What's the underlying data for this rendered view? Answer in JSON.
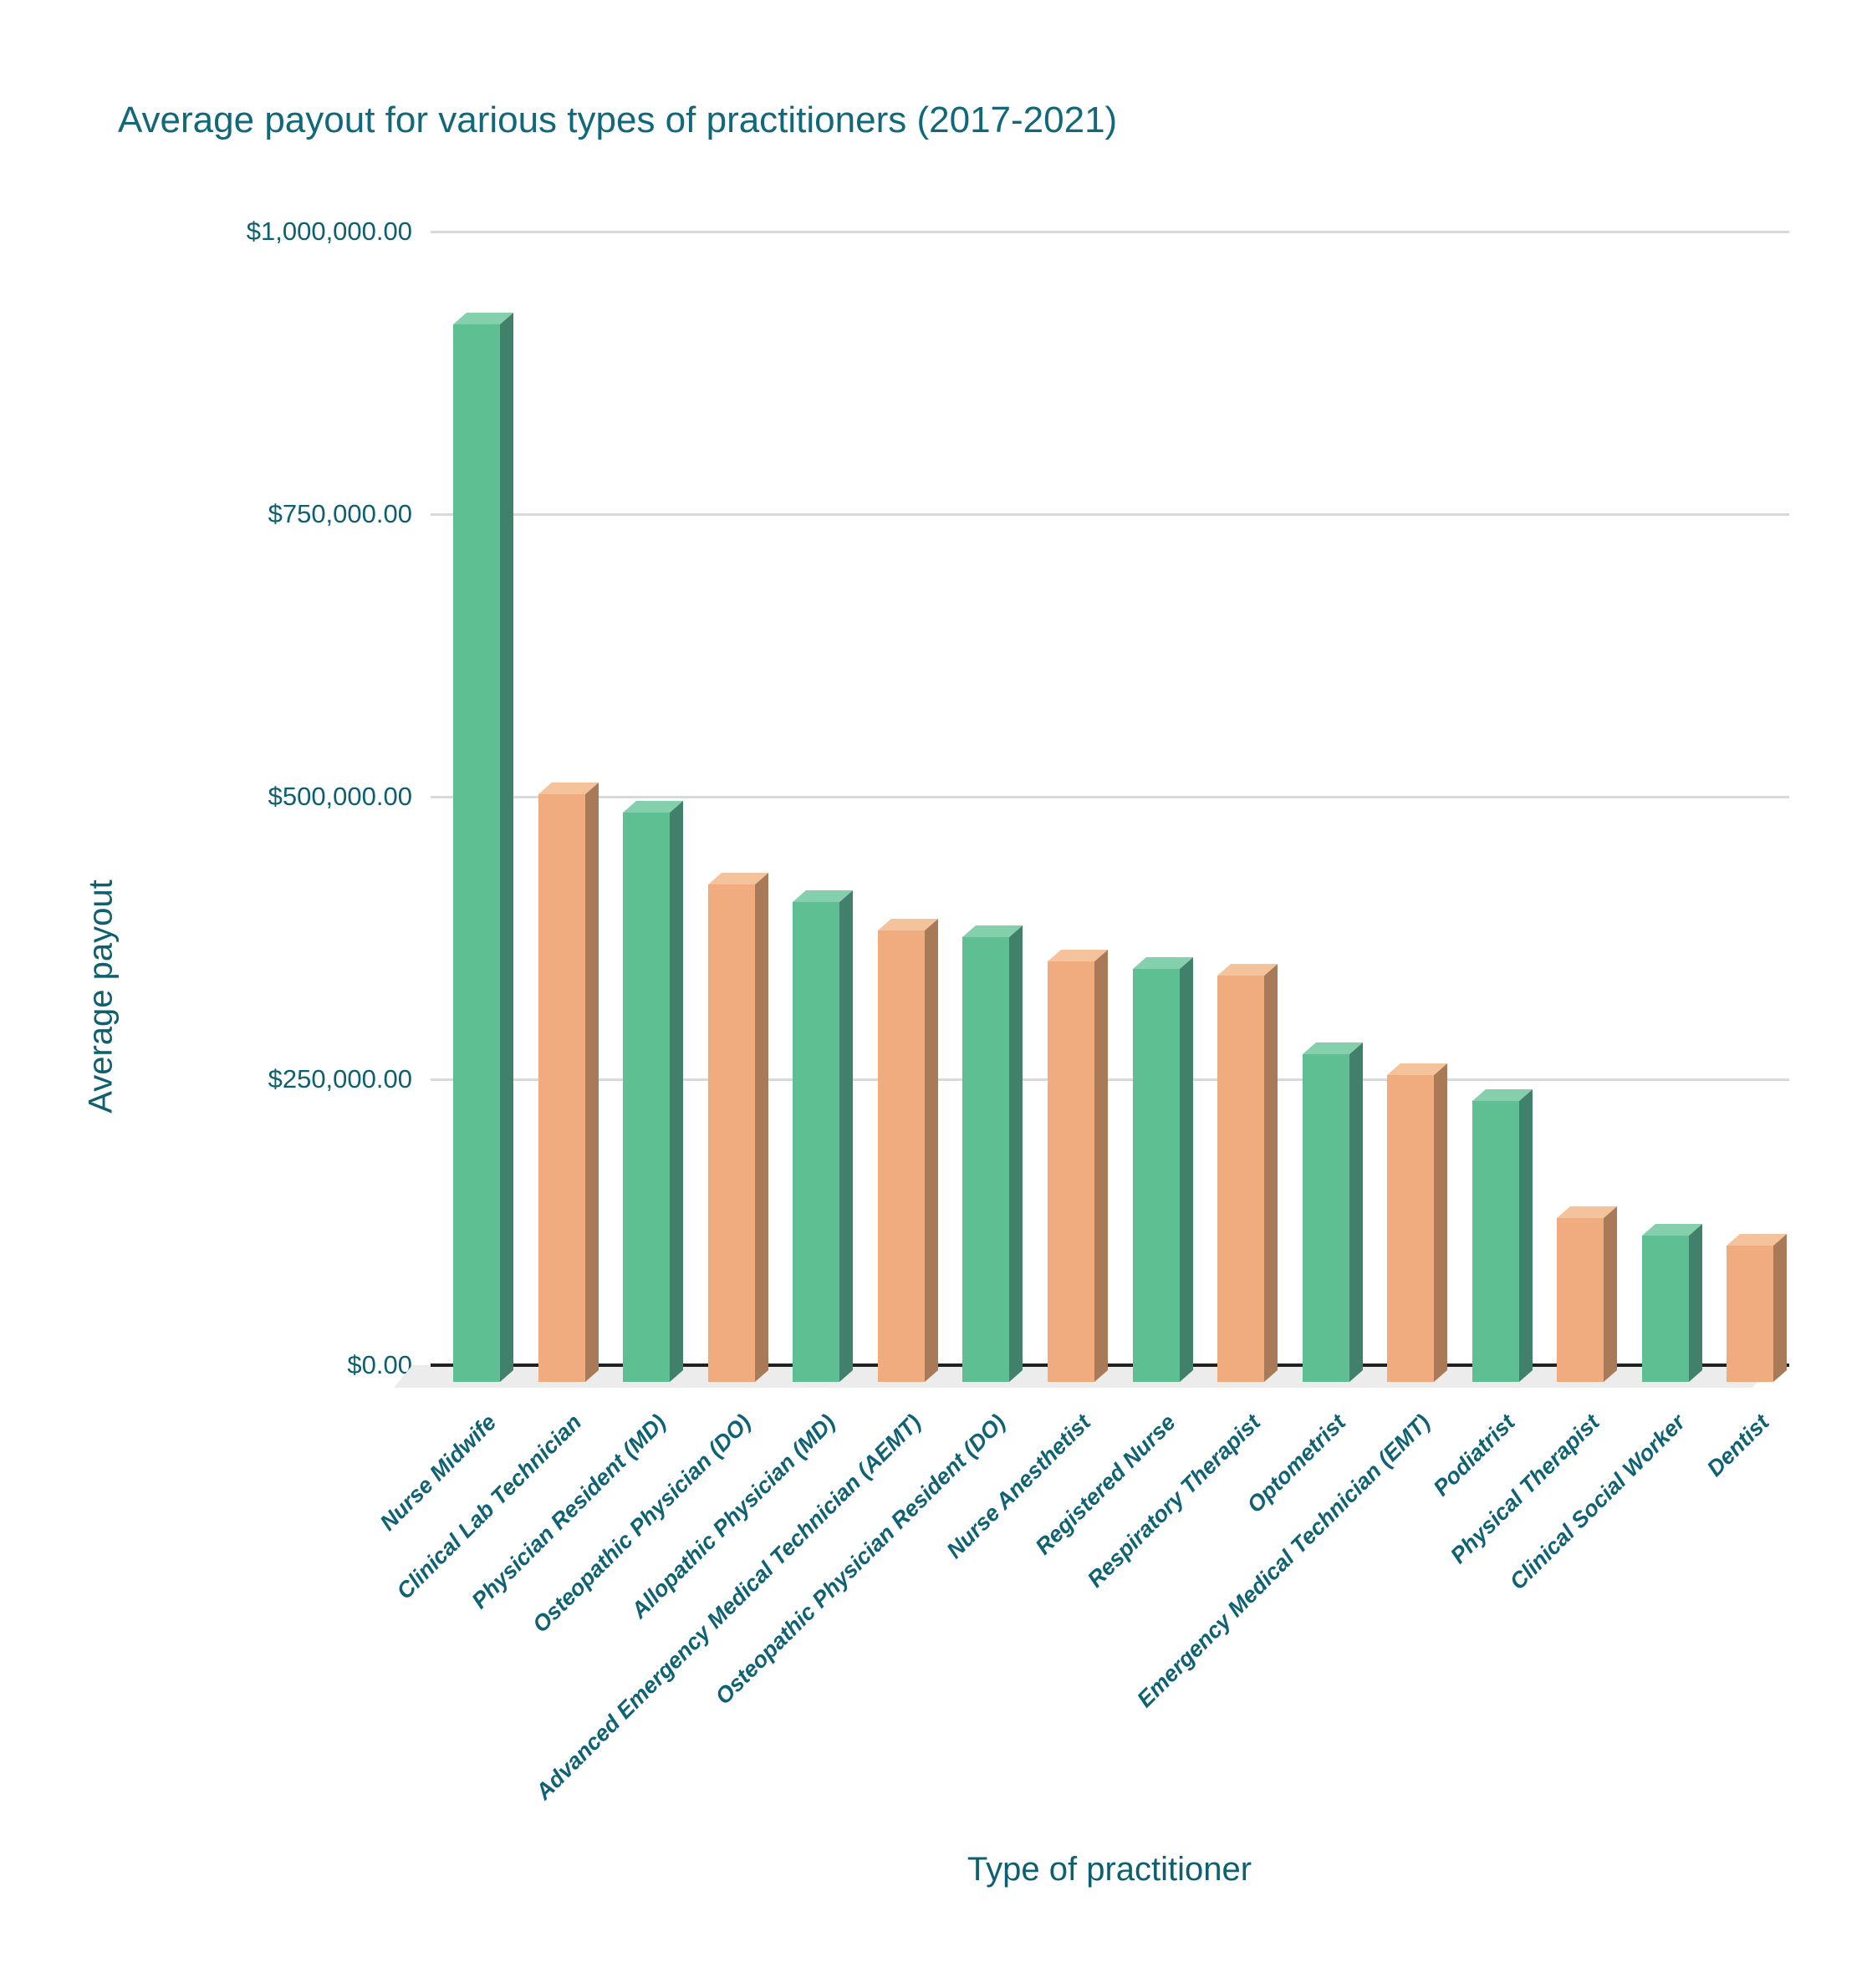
{
  "chart_data": {
    "type": "bar",
    "style": "3d-column",
    "title": "Average payout for various types of practitioners (2017-2021)",
    "xlabel": "Type of practitioner",
    "ylabel": "Average payout",
    "categories": [
      "Nurse Midwife",
      "Clinical Lab Technician",
      "Physician Resident (MD)",
      "Osteopathic Physician (DO)",
      "Allopathic Physician (MD)",
      "Advanced Emergency Medical Technician (AEMT)",
      "Osteopathic Physician Resident (DO)",
      "Nurse Anesthetist",
      "Registered Nurse",
      "Respiratory Therapist",
      "Optometrist",
      "Emergency Medical Technician (EMT)",
      "Podiatrist",
      "Physical Therapist",
      "Clinical Social Worker",
      "Dentist"
    ],
    "values": [
      918000,
      502000,
      486000,
      422000,
      407000,
      382000,
      376000,
      354000,
      348000,
      342000,
      272000,
      254000,
      231000,
      127000,
      112000,
      103000
    ],
    "y_ticks": [
      {
        "value": 1000000,
        "label": "$1,000,000.00"
      },
      {
        "value": 750000,
        "label": "$750,000.00"
      },
      {
        "value": 500000,
        "label": "$500,000.00"
      },
      {
        "value": 250000,
        "label": "$250,000.00"
      },
      {
        "value": 0,
        "label": "$0.00"
      }
    ],
    "ylim": [
      0,
      1000000
    ],
    "grid": "horizontal",
    "legend_position": "none",
    "colors": {
      "green": {
        "front": "#5ec092",
        "side": "#41806a",
        "top": "#84cfac"
      },
      "orange": {
        "front": "#f0ab7e",
        "side": "#a97a57",
        "top": "#f4c39c"
      },
      "bar_color_order": [
        "green",
        "orange"
      ],
      "title_text": "#11687a",
      "axis_text": "#0e5f6f",
      "tick_text": "#0f6273",
      "gridline": "#d9d9d9",
      "axis_line": "#212121",
      "floor": "#ececec",
      "background": "#ffffff"
    }
  }
}
